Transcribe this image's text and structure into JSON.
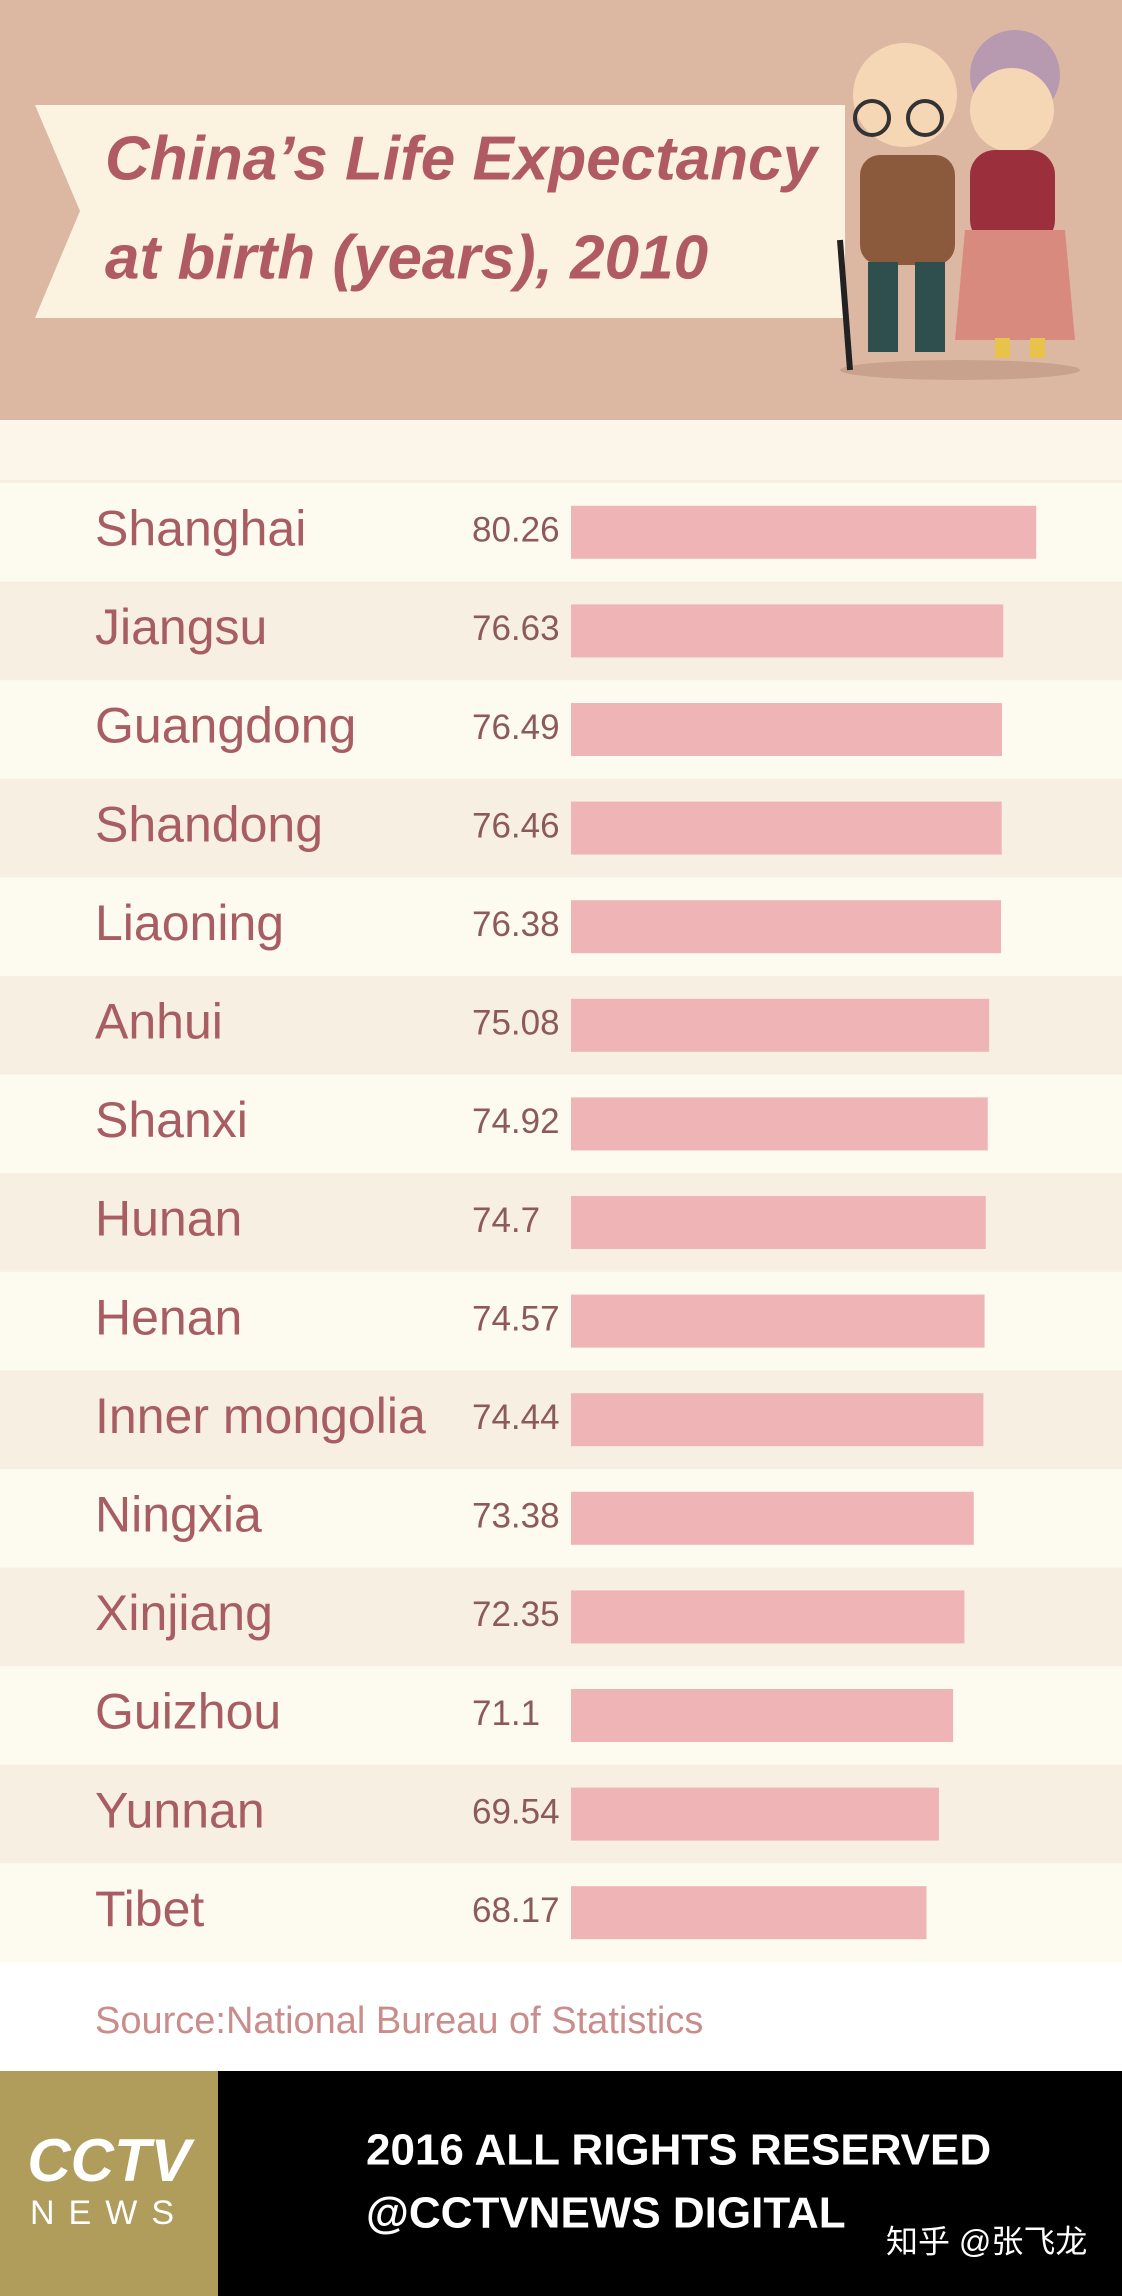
{
  "chart_data": {
    "type": "bar",
    "orientation": "horizontal",
    "title": [
      "China’s Life Expectancy",
      "at birth (years), 2010"
    ],
    "categories": [
      "Shanghai",
      "Jiangsu",
      "Guangdong",
      "Shandong",
      "Liaoning",
      "Anhui",
      "Shanxi",
      "Hunan",
      "Henan",
      "Inner mongolia",
      "Ningxia",
      "Xinjiang",
      "Guizhou",
      "Yunnan",
      "Tibet"
    ],
    "values": [
      80.26,
      76.63,
      76.49,
      76.46,
      76.38,
      75.08,
      74.92,
      74.7,
      74.57,
      74.44,
      73.38,
      72.35,
      71.1,
      69.54,
      68.17
    ],
    "color": "#efb4b5",
    "xlim": [
      29,
      82
    ],
    "source": "Source:National Bureau of Statistics"
  },
  "footer": {
    "logo_top": "CCTV",
    "logo_bottom": "NEWS",
    "rights": "2016 ALL RIGHTS RESERVED",
    "handle": "@CCTVNEWS DIGITAL",
    "watermark": "知乎 @张飞龙"
  }
}
